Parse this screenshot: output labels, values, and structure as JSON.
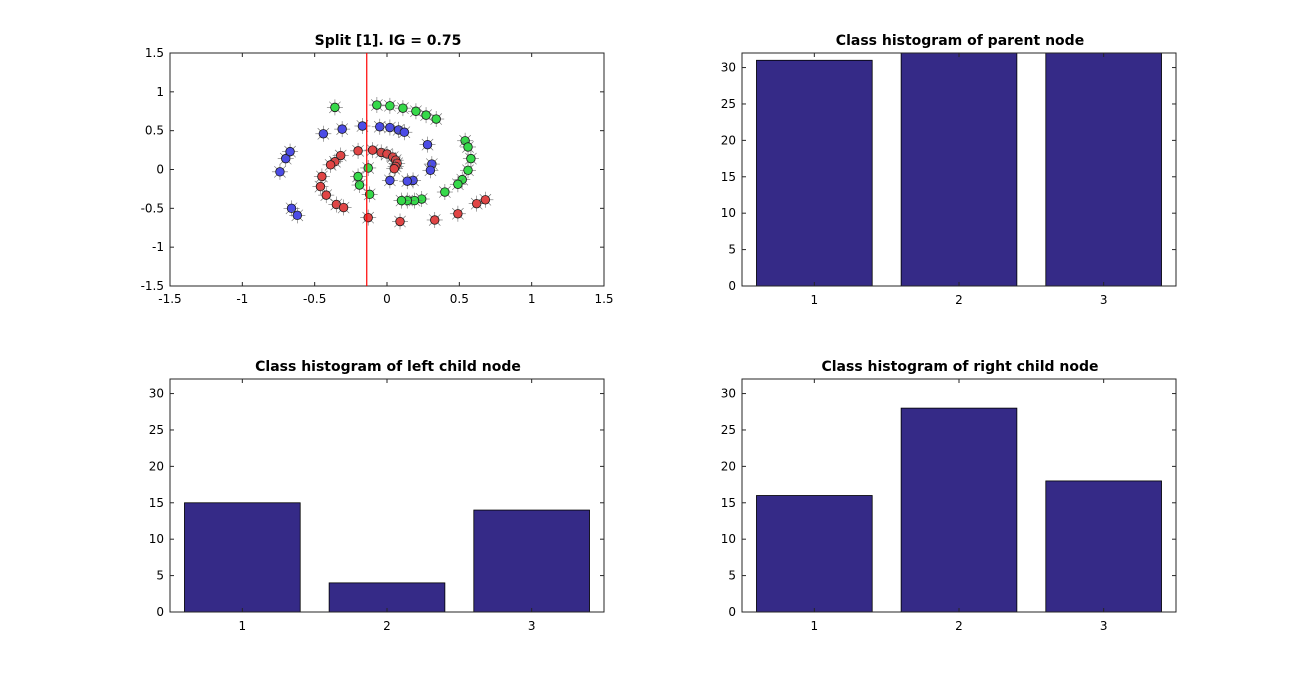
{
  "colors": {
    "bar_fill": "#352a87",
    "class_1": "#4c4ce6",
    "class_2": "#36d94a",
    "class_3": "#e04545",
    "split_line": "#ff0000",
    "axes": "#262626"
  },
  "chart_data": [
    {
      "type": "scatter",
      "title": "Split [1]. IG = 0.75",
      "xlabel": "",
      "ylabel": "",
      "xlim": [
        -1.5,
        1.5
      ],
      "ylim": [
        -1.5,
        1.5
      ],
      "xticks": [
        -1.5,
        -1,
        -0.5,
        0,
        0.5,
        1,
        1.5
      ],
      "yticks": [
        -1.5,
        -1,
        -0.5,
        0,
        0.5,
        1,
        1.5
      ],
      "xtick_labels": [
        "-1.5",
        "-1",
        "-0.5",
        "0",
        "0.5",
        "1",
        "1.5"
      ],
      "ytick_labels": [
        "-1.5",
        "-1",
        "-0.5",
        "0",
        "0.5",
        "1",
        "1.5"
      ],
      "grid": false,
      "split_line_x": -0.14,
      "series": [
        {
          "color": "#4c4ce6",
          "x": [
            -0.74,
            -0.7,
            -0.67,
            -0.66,
            -0.62,
            -0.44,
            -0.31,
            -0.17,
            -0.05,
            0.02,
            0.08,
            0.12,
            0.28,
            0.31,
            0.3,
            0.18,
            0.14,
            0.02
          ],
          "y": [
            -0.03,
            0.14,
            0.23,
            -0.5,
            -0.59,
            0.46,
            0.52,
            0.56,
            0.55,
            0.54,
            0.51,
            0.48,
            0.32,
            0.07,
            -0.01,
            -0.14,
            -0.15,
            -0.14
          ]
        },
        {
          "color": "#36d94a",
          "x": [
            -0.36,
            -0.07,
            0.02,
            0.11,
            0.2,
            0.27,
            0.34,
            0.54,
            0.56,
            0.58,
            0.56,
            0.52,
            0.49,
            0.4,
            0.24,
            0.19,
            0.14,
            0.1,
            -0.12,
            -0.19,
            -0.2,
            -0.13
          ],
          "y": [
            0.8,
            0.83,
            0.82,
            0.79,
            0.75,
            0.7,
            0.65,
            0.37,
            0.29,
            0.14,
            -0.01,
            -0.13,
            -0.19,
            -0.29,
            -0.38,
            -0.4,
            -0.4,
            -0.4,
            -0.32,
            -0.2,
            -0.09,
            0.02
          ]
        },
        {
          "color": "#e04545",
          "x": [
            -0.04,
            0.0,
            0.04,
            0.06,
            0.07,
            0.06,
            0.05,
            -0.1,
            -0.2,
            -0.32,
            -0.36,
            -0.39,
            -0.45,
            -0.46,
            -0.42,
            -0.35,
            -0.3,
            -0.13,
            0.09,
            0.33,
            0.49,
            0.62,
            0.68
          ],
          "y": [
            0.22,
            0.2,
            0.16,
            0.12,
            0.08,
            0.04,
            0.01,
            0.25,
            0.24,
            0.18,
            0.1,
            0.06,
            -0.09,
            -0.22,
            -0.33,
            -0.45,
            -0.49,
            -0.62,
            -0.67,
            -0.65,
            -0.57,
            -0.44,
            -0.39
          ]
        }
      ]
    },
    {
      "type": "bar",
      "title": "Class histogram of parent node",
      "categories": [
        "1",
        "2",
        "3"
      ],
      "values": [
        31,
        32,
        32
      ],
      "ylim": [
        0,
        32
      ],
      "yticks": [
        0,
        5,
        10,
        15,
        20,
        25,
        30
      ],
      "ytick_labels": [
        "0",
        "5",
        "10",
        "15",
        "20",
        "25",
        "30"
      ],
      "xlabel": "",
      "ylabel": ""
    },
    {
      "type": "bar",
      "title": "Class histogram of left child node",
      "categories": [
        "1",
        "2",
        "3"
      ],
      "values": [
        15,
        4,
        14
      ],
      "ylim": [
        0,
        32
      ],
      "yticks": [
        0,
        5,
        10,
        15,
        20,
        25,
        30
      ],
      "ytick_labels": [
        "0",
        "5",
        "10",
        "15",
        "20",
        "25",
        "30"
      ],
      "xlabel": "",
      "ylabel": ""
    },
    {
      "type": "bar",
      "title": "Class histogram of right child node",
      "categories": [
        "1",
        "2",
        "3"
      ],
      "values": [
        16,
        28,
        18
      ],
      "ylim": [
        0,
        32
      ],
      "yticks": [
        0,
        5,
        10,
        15,
        20,
        25,
        30
      ],
      "ytick_labels": [
        "0",
        "5",
        "10",
        "15",
        "20",
        "25",
        "30"
      ],
      "xlabel": "",
      "ylabel": ""
    }
  ]
}
